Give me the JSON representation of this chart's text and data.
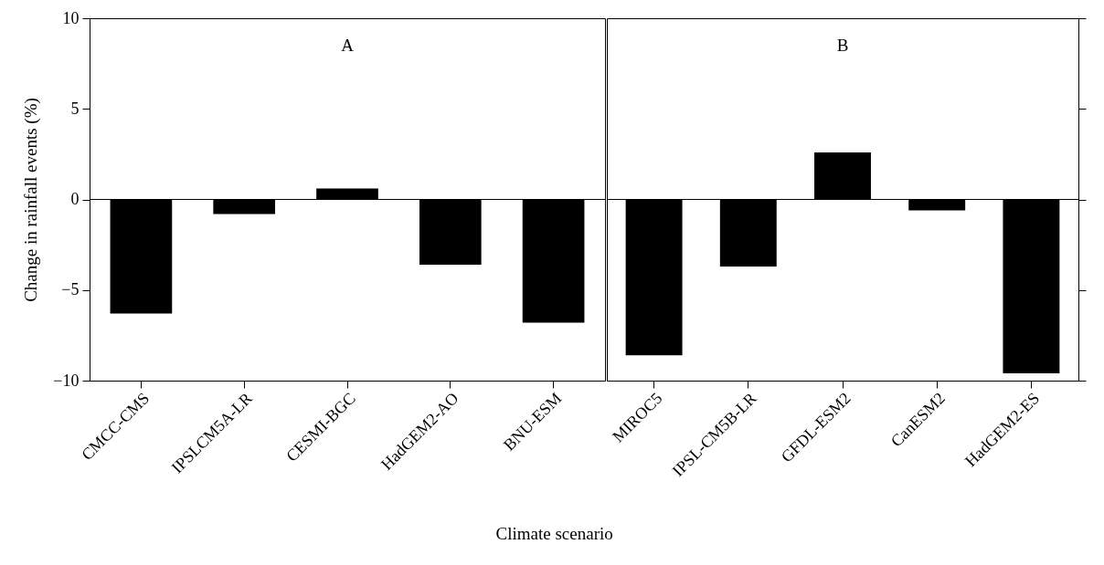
{
  "chart_data": [
    {
      "type": "bar",
      "title": "A",
      "ylabel": "Change in rainfall events (%)",
      "xlabel": "Climate scenario",
      "categories": [
        "CMCC-CMS",
        "IPSLCM5A-LR",
        "CESMI-BGC",
        "HadGEM2-AO",
        "BNU-ESM"
      ],
      "values": [
        -6.3,
        -0.8,
        0.6,
        -3.6,
        -6.8
      ],
      "color": "#000000",
      "ylim": [
        -10,
        10
      ],
      "yticks": [
        -10,
        -5,
        0,
        5,
        10
      ],
      "ref_lines": [
        {
          "axis": "y",
          "value": 0
        }
      ]
    },
    {
      "type": "bar",
      "title": "B",
      "categories": [
        "MIROC5",
        "IPSL-CM5B-LR",
        "GFDL-ESM2",
        "CanESM2",
        "HadGEM2-ES"
      ],
      "values": [
        -8.6,
        -3.7,
        2.6,
        -0.6,
        -9.6
      ],
      "color": "#000000",
      "ylim": [
        -10,
        10
      ],
      "yticks": [
        -10,
        -5,
        0,
        5,
        10
      ],
      "tick_labels": "x",
      "ref_lines": [
        {
          "axis": "y",
          "value": 0
        }
      ]
    }
  ]
}
